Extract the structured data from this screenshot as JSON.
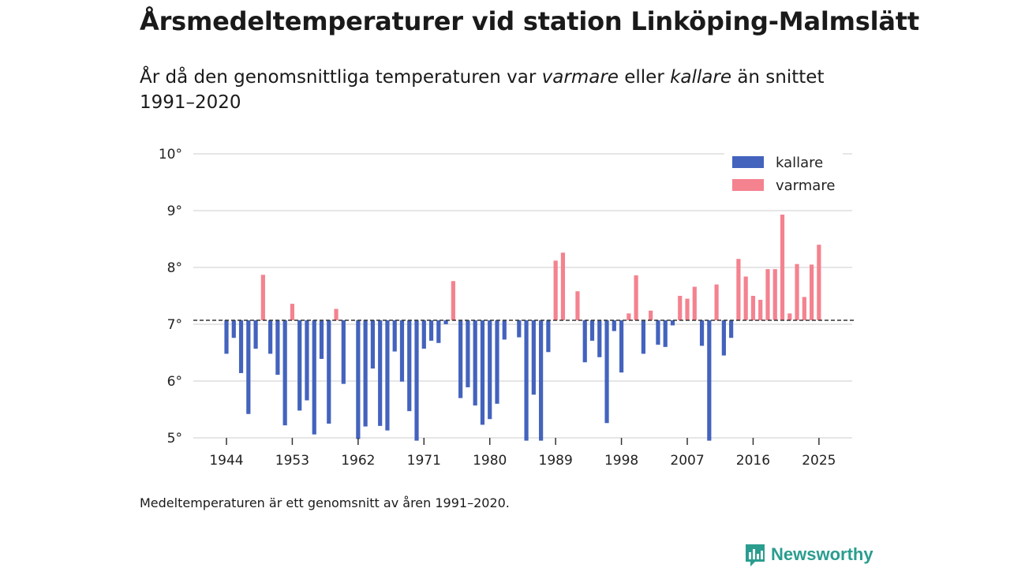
{
  "title": "Årsmedeltemperaturer vid station Linköping-Malmslätt",
  "subtitle": {
    "part1": "År då den genomsnittliga temperaturen var ",
    "warmer_word": "varmare",
    "part2": " eller ",
    "colder_word": "kallare",
    "part3": " än snittet 1991–2020"
  },
  "footnote": "Medeltemperaturen är ett genomsnitt av åren 1991–2020.",
  "brand": "Newsworthy",
  "colors": {
    "colder": "#4363bd",
    "warmer": "#f4828f",
    "grid": "#dddddd",
    "baseline": "#333333",
    "brand": "#2a9d8f"
  },
  "chart_data": {
    "type": "bar",
    "baseline": 7.07,
    "ylim": [
      5,
      10
    ],
    "xlim": [
      1940,
      2029
    ],
    "yticks": [
      5,
      6,
      7,
      8,
      9,
      10
    ],
    "ytick_labels": [
      "5°",
      "6°",
      "7°",
      "8°",
      "9°",
      "10°"
    ],
    "xticks": [
      1944,
      1953,
      1962,
      1971,
      1980,
      1989,
      1998,
      2007,
      2016,
      2025
    ],
    "xtick_labels": [
      "1944",
      "1953",
      "1962",
      "1971",
      "1980",
      "1989",
      "1998",
      "2007",
      "2016",
      "2025"
    ],
    "legend": [
      {
        "key": "colder",
        "label": "kallare"
      },
      {
        "key": "warmer",
        "label": "varmare"
      }
    ],
    "legend_position": "top-right",
    "series": [
      {
        "year": 1944,
        "value": 6.48
      },
      {
        "year": 1945,
        "value": 6.76
      },
      {
        "year": 1946,
        "value": 6.14
      },
      {
        "year": 1947,
        "value": 5.42
      },
      {
        "year": 1948,
        "value": 6.57
      },
      {
        "year": 1949,
        "value": 7.87
      },
      {
        "year": 1950,
        "value": 6.48
      },
      {
        "year": 1951,
        "value": 6.11
      },
      {
        "year": 1952,
        "value": 5.22
      },
      {
        "year": 1953,
        "value": 7.36
      },
      {
        "year": 1954,
        "value": 5.48
      },
      {
        "year": 1955,
        "value": 5.66
      },
      {
        "year": 1956,
        "value": 5.06
      },
      {
        "year": 1957,
        "value": 6.39
      },
      {
        "year": 1958,
        "value": 5.25
      },
      {
        "year": 1959,
        "value": 7.27
      },
      {
        "year": 1960,
        "value": 5.95
      },
      {
        "year": 1962,
        "value": 4.98
      },
      {
        "year": 1963,
        "value": 5.2
      },
      {
        "year": 1964,
        "value": 6.22
      },
      {
        "year": 1965,
        "value": 5.21
      },
      {
        "year": 1966,
        "value": 5.13
      },
      {
        "year": 1967,
        "value": 6.52
      },
      {
        "year": 1968,
        "value": 5.99
      },
      {
        "year": 1969,
        "value": 5.47
      },
      {
        "year": 1970,
        "value": 4.95
      },
      {
        "year": 1971,
        "value": 6.57
      },
      {
        "year": 1972,
        "value": 6.71
      },
      {
        "year": 1973,
        "value": 6.67
      },
      {
        "year": 1974,
        "value": 7.0
      },
      {
        "year": 1975,
        "value": 7.76
      },
      {
        "year": 1976,
        "value": 5.7
      },
      {
        "year": 1977,
        "value": 5.89
      },
      {
        "year": 1978,
        "value": 5.57
      },
      {
        "year": 1979,
        "value": 5.23
      },
      {
        "year": 1980,
        "value": 5.33
      },
      {
        "year": 1981,
        "value": 5.6
      },
      {
        "year": 1982,
        "value": 6.73
      },
      {
        "year": 1984,
        "value": 6.77
      },
      {
        "year": 1985,
        "value": 4.95
      },
      {
        "year": 1986,
        "value": 5.76
      },
      {
        "year": 1987,
        "value": 4.95
      },
      {
        "year": 1988,
        "value": 6.51
      },
      {
        "year": 1989,
        "value": 8.12
      },
      {
        "year": 1990,
        "value": 8.26
      },
      {
        "year": 1992,
        "value": 7.58
      },
      {
        "year": 1993,
        "value": 6.33
      },
      {
        "year": 1994,
        "value": 6.71
      },
      {
        "year": 1995,
        "value": 6.42
      },
      {
        "year": 1996,
        "value": 5.26
      },
      {
        "year": 1997,
        "value": 6.88
      },
      {
        "year": 1998,
        "value": 6.15
      },
      {
        "year": 1999,
        "value": 7.19
      },
      {
        "year": 2000,
        "value": 7.86
      },
      {
        "year": 2001,
        "value": 6.48
      },
      {
        "year": 2002,
        "value": 7.24
      },
      {
        "year": 2003,
        "value": 6.64
      },
      {
        "year": 2004,
        "value": 6.6
      },
      {
        "year": 2005,
        "value": 6.98
      },
      {
        "year": 2006,
        "value": 7.5
      },
      {
        "year": 2007,
        "value": 7.45
      },
      {
        "year": 2008,
        "value": 7.66
      },
      {
        "year": 2009,
        "value": 6.62
      },
      {
        "year": 2010,
        "value": 4.95
      },
      {
        "year": 2011,
        "value": 7.7
      },
      {
        "year": 2012,
        "value": 6.45
      },
      {
        "year": 2013,
        "value": 6.76
      },
      {
        "year": 2014,
        "value": 8.15
      },
      {
        "year": 2015,
        "value": 7.84
      },
      {
        "year": 2016,
        "value": 7.5
      },
      {
        "year": 2017,
        "value": 7.43
      },
      {
        "year": 2018,
        "value": 7.97
      },
      {
        "year": 2019,
        "value": 7.97
      },
      {
        "year": 2020,
        "value": 8.93
      },
      {
        "year": 2021,
        "value": 7.19
      },
      {
        "year": 2022,
        "value": 8.06
      },
      {
        "year": 2023,
        "value": 7.48
      },
      {
        "year": 2024,
        "value": 8.05
      },
      {
        "year": 2025,
        "value": 8.4
      }
    ]
  }
}
